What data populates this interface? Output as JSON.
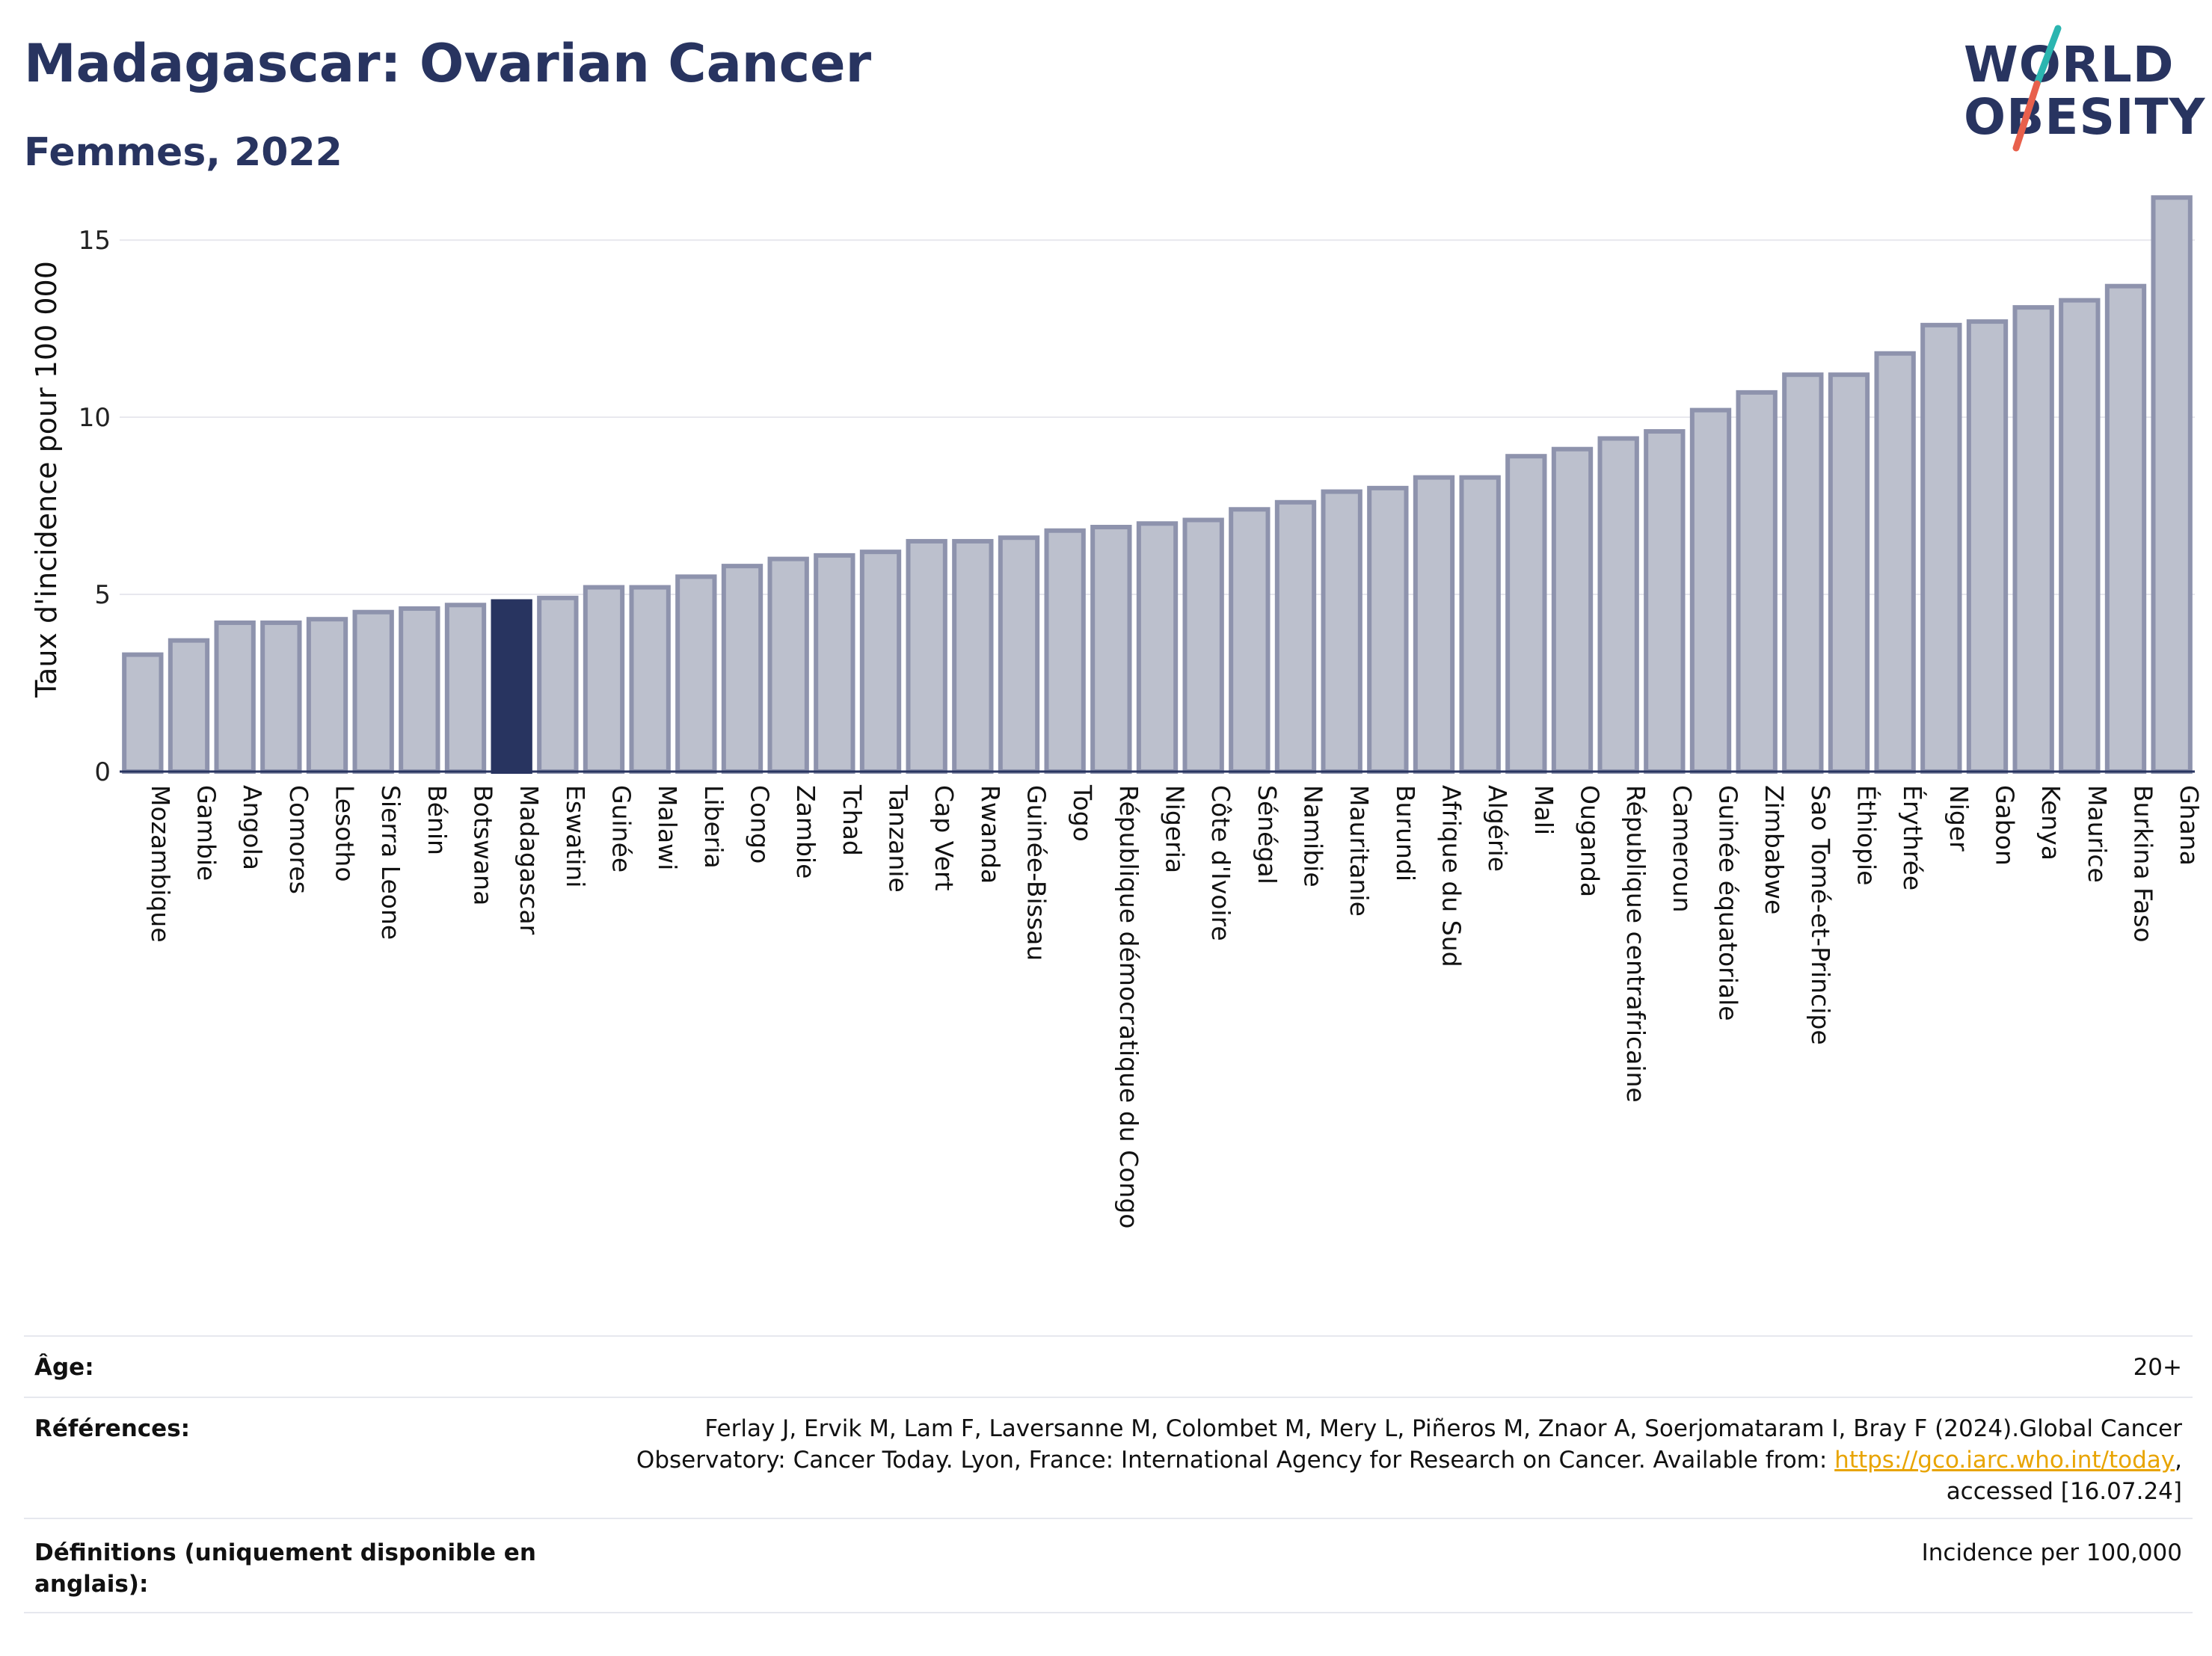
{
  "header": {
    "title": "Madagascar: Ovarian Cancer",
    "subtitle": "Femmes, 2022"
  },
  "logo": {
    "line1": "WORLD",
    "line2": "OBESITY",
    "accent_colors": [
      "#2bb5b0",
      "#e8604c"
    ]
  },
  "chart_data": {
    "type": "bar",
    "title": "",
    "xlabel": "",
    "ylabel": "Taux d'incidence pour 100 000",
    "ylim": [
      0,
      16.5
    ],
    "yticks": [
      0,
      5,
      10,
      15
    ],
    "grid": true,
    "highlight": "Madagascar",
    "colors": {
      "bar": "#bcc0cd",
      "bar_edge": "#8e93ad",
      "highlight": "#283460",
      "axis": "#283460",
      "grid": "#e8e8ee"
    },
    "categories": [
      "Mozambique",
      "Gambie",
      "Angola",
      "Comores",
      "Lesotho",
      "Sierra Leone",
      "Bénin",
      "Botswana",
      "Madagascar",
      "Eswatini",
      "Guinée",
      "Malawi",
      "Liberia",
      "Congo",
      "Zambie",
      "Tchad",
      "Tanzanie",
      "Cap Vert",
      "Rwanda",
      "Guinée-Bissau",
      "Togo",
      "République démocratique du Congo",
      "Nigeria",
      "Côte d'Ivoire",
      "Sénégal",
      "Namibie",
      "Mauritanie",
      "Burundi",
      "Afrique du Sud",
      "Algérie",
      "Mali",
      "Ouganda",
      "République centrafricaine",
      "Cameroun",
      "Guinée équatoriale",
      "Zimbabwe",
      "Sao Tomé-et-Principe",
      "Éthiopie",
      "Érythrée",
      "Niger",
      "Gabon",
      "Kenya",
      "Maurice",
      "Burkina Faso",
      "Ghana"
    ],
    "values": [
      3.3,
      3.7,
      4.2,
      4.2,
      4.3,
      4.5,
      4.6,
      4.7,
      4.8,
      4.9,
      5.2,
      5.2,
      5.5,
      5.8,
      6.0,
      6.1,
      6.2,
      6.5,
      6.5,
      6.6,
      6.8,
      6.9,
      7.0,
      7.1,
      7.4,
      7.6,
      7.9,
      8.0,
      8.3,
      8.3,
      8.9,
      9.1,
      9.4,
      9.6,
      10.2,
      10.7,
      11.2,
      11.2,
      11.8,
      12.6,
      12.7,
      13.1,
      13.3,
      13.7,
      16.2
    ]
  },
  "footer": {
    "age_label": "Âge:",
    "age_value": "20+",
    "references_label": "Références:",
    "references_line1": "Ferlay J, Ervik M, Lam F, Laversanne M, Colombet M, Mery L, Piñeros M, Znaor A, Soerjomataram I, Bray F (2024).Global Cancer",
    "references_line2_prefix": "Observatory: Cancer Today. Lyon, France: International Agency for Research on Cancer. Available from: ",
    "references_link": "https://gco.iarc.who.int/today",
    "references_line2_suffix": ",",
    "references_line3": "accessed [16.07.24]",
    "definitions_label_line1": "Définitions (uniquement disponible en",
    "definitions_label_line2": "anglais):",
    "definitions_value": "Incidence per 100,000"
  }
}
